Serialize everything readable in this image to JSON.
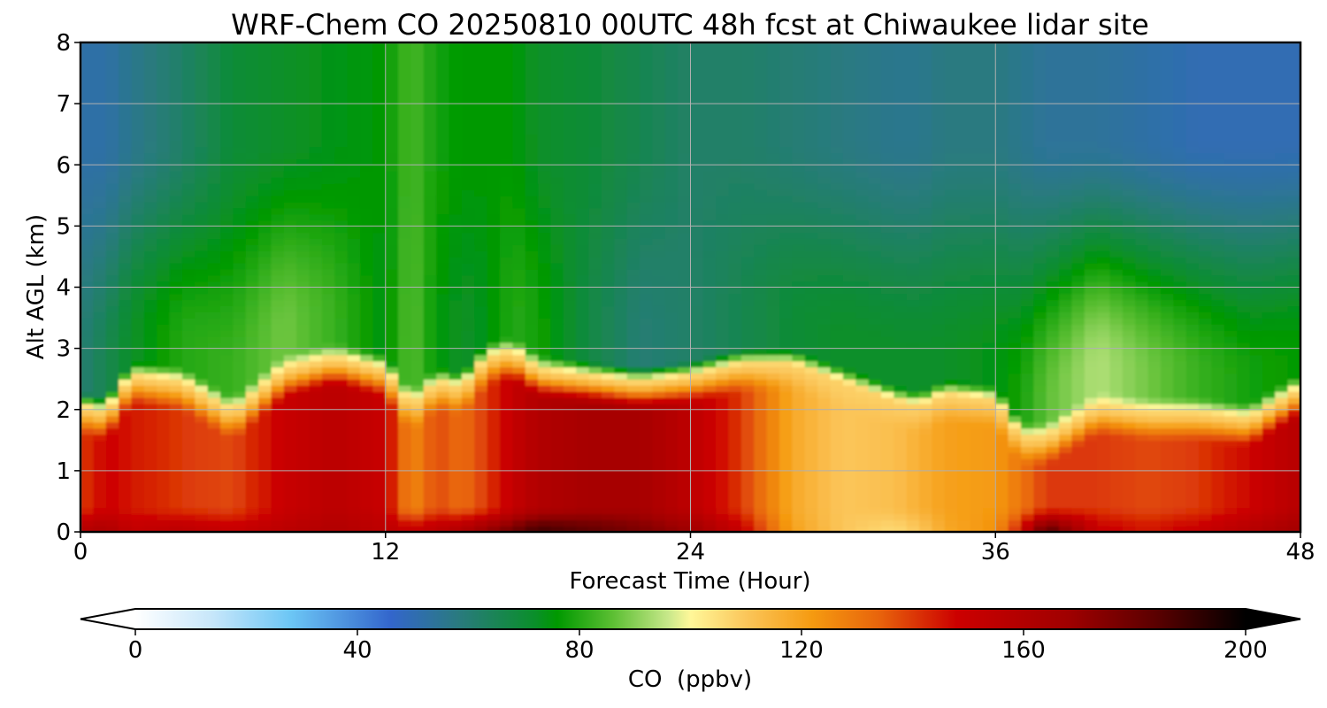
{
  "chart_data": {
    "type": "heatmap",
    "title": "WRF-Chem CO  20250810 00UTC 48h fcst at Chiwaukee lidar site",
    "xlabel": "Forecast Time (Hour)",
    "ylabel": "Alt AGL (km)",
    "xlim": [
      0,
      48
    ],
    "ylim": [
      0,
      8
    ],
    "xticks": [
      0,
      12,
      24,
      36,
      48
    ],
    "yticks": [
      0,
      1,
      2,
      3,
      4,
      5,
      6,
      7,
      8
    ],
    "grid": true,
    "colorbar": {
      "label": "CO  (ppbv)",
      "min": 0,
      "max": 200,
      "ticks": [
        0,
        40,
        80,
        120,
        160,
        200
      ],
      "extend": "both",
      "stops": [
        {
          "v": 0,
          "c": "#ffffff"
        },
        {
          "v": 14,
          "c": "#c6e6fa"
        },
        {
          "v": 28,
          "c": "#6cc6f5"
        },
        {
          "v": 46,
          "c": "#3366cc"
        },
        {
          "v": 58,
          "c": "#2a7a80"
        },
        {
          "v": 72,
          "c": "#0a8f2a"
        },
        {
          "v": 76,
          "c": "#009900"
        },
        {
          "v": 86,
          "c": "#5cbf33"
        },
        {
          "v": 96,
          "c": "#c8e88a"
        },
        {
          "v": 100,
          "c": "#fff799"
        },
        {
          "v": 110,
          "c": "#fbc65a"
        },
        {
          "v": 122,
          "c": "#f59a10"
        },
        {
          "v": 134,
          "c": "#e8640c"
        },
        {
          "v": 148,
          "c": "#cc0000"
        },
        {
          "v": 168,
          "c": "#a00000"
        },
        {
          "v": 184,
          "c": "#5a0000"
        },
        {
          "v": 200,
          "c": "#000000"
        }
      ]
    },
    "hours": [
      0,
      1,
      2,
      4,
      6,
      8,
      10,
      12,
      13,
      14,
      15,
      16,
      17,
      18,
      20,
      22,
      24,
      26,
      28,
      30,
      32,
      33,
      34,
      36,
      37,
      38,
      40,
      42,
      44,
      46,
      48
    ],
    "boundary_layer_top_km": [
      2.1,
      2.0,
      2.6,
      2.5,
      2.0,
      2.7,
      2.9,
      2.7,
      2.1,
      2.5,
      2.4,
      2.9,
      3.0,
      2.7,
      2.6,
      2.5,
      2.6,
      2.8,
      2.8,
      2.5,
      2.2,
      2.1,
      2.3,
      2.2,
      1.6,
      1.6,
      2.1,
      2.0,
      2.0,
      1.9,
      2.4
    ],
    "boundary_layer_co_ppbv": [
      140,
      148,
      145,
      140,
      138,
      150,
      156,
      150,
      125,
      138,
      132,
      140,
      152,
      160,
      165,
      165,
      155,
      140,
      118,
      110,
      112,
      116,
      120,
      122,
      130,
      140,
      140,
      138,
      140,
      148,
      158
    ],
    "surface_co_ppbv": [
      158,
      162,
      152,
      155,
      150,
      156,
      160,
      155,
      150,
      155,
      160,
      170,
      178,
      188,
      182,
      176,
      168,
      150,
      120,
      110,
      106,
      110,
      118,
      124,
      145,
      185,
      150,
      145,
      150,
      158,
      166
    ],
    "free_trop_co_ppbv": [
      60,
      66,
      72,
      80,
      82,
      88,
      82,
      74,
      86,
      76,
      72,
      74,
      80,
      78,
      68,
      60,
      62,
      66,
      70,
      72,
      72,
      72,
      72,
      74,
      78,
      86,
      94,
      88,
      82,
      78,
      76
    ],
    "upper_co_ppbv": [
      52,
      52,
      56,
      62,
      70,
      72,
      74,
      76,
      84,
      78,
      76,
      76,
      76,
      72,
      70,
      66,
      62,
      62,
      60,
      58,
      56,
      56,
      58,
      58,
      56,
      54,
      54,
      52,
      50,
      50,
      50
    ]
  }
}
